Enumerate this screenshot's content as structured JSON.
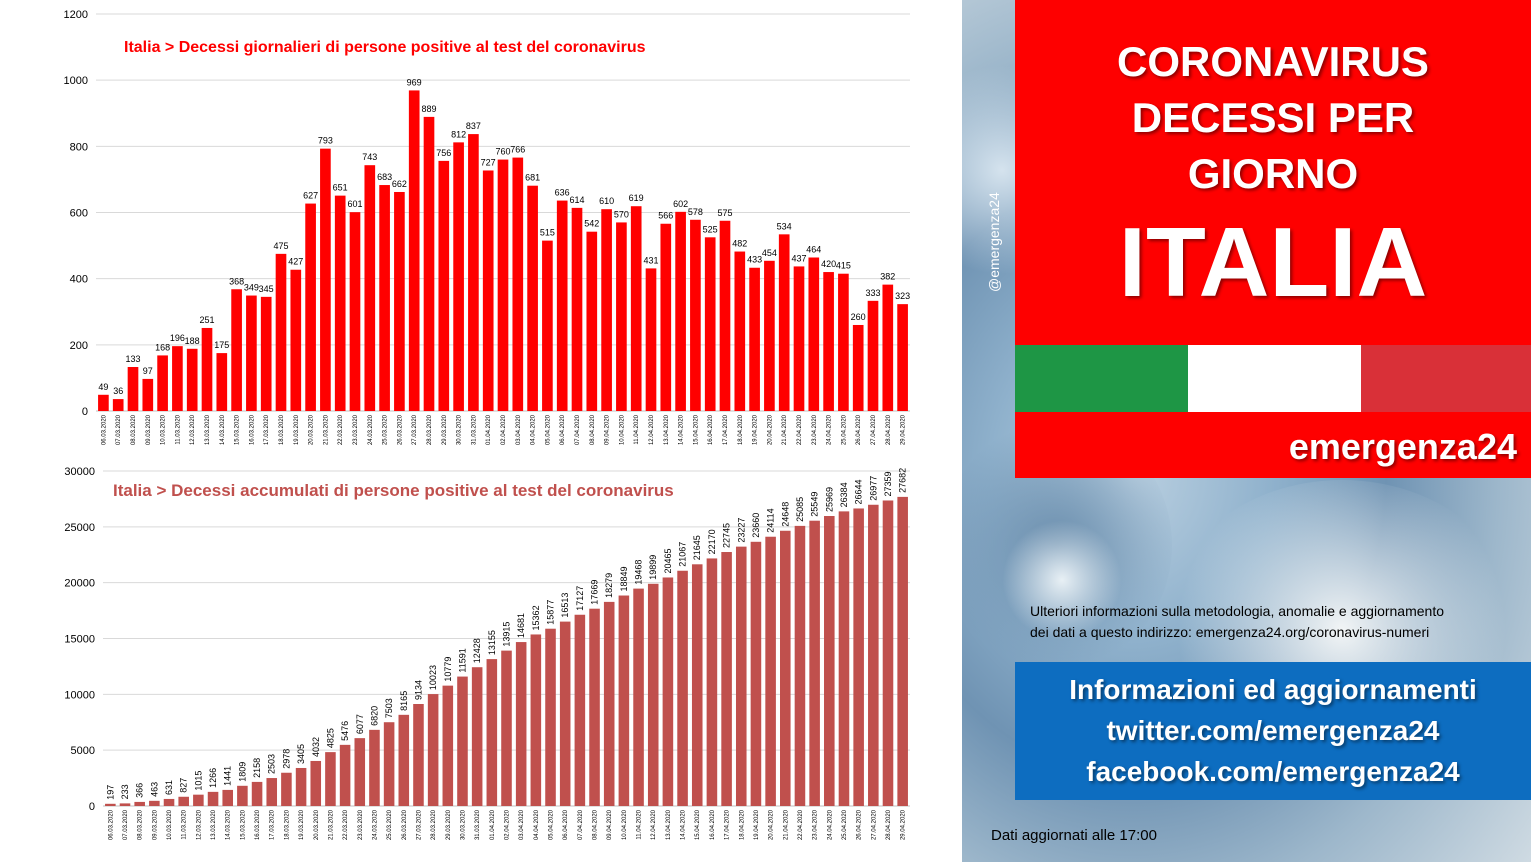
{
  "chart_data": [
    {
      "type": "bar",
      "title": "Italia > Decessi giornalieri di persone positive al test del coronavirus",
      "ylim": [
        0,
        1200
      ],
      "yticks": [
        0,
        200,
        400,
        600,
        800,
        1000,
        1200
      ],
      "grid": true,
      "color": "#ff0000",
      "categories": [
        "06.03.2020",
        "07.03.2020",
        "08.03.2020",
        "09.03.2020",
        "10.03.2020",
        "11.03.2020",
        "12.03.2020",
        "13.03.2020",
        "14.03.2020",
        "15.03.2020",
        "16.03.2020",
        "17.03.2020",
        "18.03.2020",
        "19.03.2020",
        "20.03.2020",
        "21.03.2020",
        "22.03.2020",
        "23.03.2020",
        "24.03.2020",
        "25.03.2020",
        "26.03.2020",
        "27.03.2020",
        "28.03.2020",
        "29.03.2020",
        "30.03.2020",
        "31.03.2020",
        "01.04.2020",
        "02.04.2020",
        "03.04.2020",
        "04.04.2020",
        "05.04.2020",
        "06.04.2020",
        "07.04.2020",
        "08.04.2020",
        "09.04.2020",
        "10.04.2020",
        "11.04.2020",
        "12.04.2020",
        "13.04.2020",
        "14.04.2020",
        "15.04.2020",
        "16.04.2020",
        "17.04.2020",
        "18.04.2020",
        "19.04.2020",
        "20.04.2020",
        "21.04.2020",
        "22.04.2020",
        "23.04.2020",
        "24.04.2020",
        "25.04.2020",
        "26.04.2020",
        "27.04.2020",
        "28.04.2020",
        "29.04.2020"
      ],
      "values": [
        49,
        36,
        133,
        97,
        168,
        196,
        188,
        251,
        175,
        368,
        349,
        345,
        475,
        427,
        627,
        793,
        651,
        601,
        743,
        683,
        662,
        969,
        889,
        756,
        812,
        837,
        727,
        760,
        766,
        681,
        515,
        636,
        614,
        542,
        610,
        570,
        619,
        431,
        566,
        602,
        578,
        525,
        575,
        482,
        433,
        454,
        534,
        437,
        464,
        420,
        415,
        260,
        333,
        382,
        323
      ]
    },
    {
      "type": "bar",
      "title": "Italia > Decessi accumulati di persone positive al test del coronavirus",
      "ylim": [
        0,
        30000
      ],
      "yticks": [
        0,
        5000,
        10000,
        15000,
        20000,
        25000,
        30000
      ],
      "grid": true,
      "color": "#c0504d",
      "categories": [
        "06.03.2020",
        "07.03.2020",
        "08.03.2020",
        "09.03.2020",
        "10.03.2020",
        "11.03.2020",
        "12.03.2020",
        "13.03.2020",
        "14.03.2020",
        "15.03.2020",
        "16.03.2020",
        "17.03.2020",
        "18.03.2020",
        "19.03.2020",
        "20.03.2020",
        "21.03.2020",
        "22.03.2020",
        "23.03.2020",
        "24.03.2020",
        "25.03.2020",
        "26.03.2020",
        "27.03.2020",
        "28.03.2020",
        "29.03.2020",
        "30.03.2020",
        "31.03.2020",
        "01.04.2020",
        "02.04.2020",
        "03.04.2020",
        "04.04.2020",
        "05.04.2020",
        "06.04.2020",
        "07.04.2020",
        "08.04.2020",
        "09.04.2020",
        "10.04.2020",
        "11.04.2020",
        "12.04.2020",
        "13.04.2020",
        "14.04.2020",
        "15.04.2020",
        "16.04.2020",
        "17.04.2020",
        "18.04.2020",
        "19.04.2020",
        "20.04.2020",
        "21.04.2020",
        "22.04.2020",
        "23.04.2020",
        "24.04.2020",
        "25.04.2020",
        "26.04.2020",
        "27.04.2020",
        "28.04.2020",
        "29.04.2020"
      ],
      "values": [
        197,
        233,
        366,
        463,
        631,
        827,
        1015,
        1266,
        1441,
        1809,
        2158,
        2503,
        2978,
        3405,
        4032,
        4825,
        5476,
        6077,
        6820,
        7503,
        8165,
        9134,
        10023,
        10779,
        11591,
        12428,
        13155,
        13915,
        14681,
        15362,
        15877,
        16513,
        17127,
        17669,
        18279,
        18849,
        19468,
        19899,
        20465,
        21067,
        21645,
        22170,
        22745,
        23227,
        23660,
        24114,
        24648,
        25085,
        25549,
        25969,
        26384,
        26644,
        26977,
        27359,
        27682
      ]
    }
  ],
  "panel": {
    "headline_lines": [
      "CORONAVIRUS",
      "DECESSI PER",
      "GIORNO"
    ],
    "country": "ITALIA",
    "brand": "emergenza24",
    "handle": "@emergenza24",
    "info_line1": "Ulteriori informazioni sulla metodologia, anomalie e aggiornamento",
    "info_line2": "dei dati a questo indirizzo: emergenza24.org/coronavirus-numeri",
    "social_title": "Informazioni ed aggiornamenti",
    "twitter": "twitter.com/emergenza24",
    "facebook": "facebook.com/emergenza24",
    "updated": "Dati aggiornati alle 17:00",
    "flag_colors": [
      "#1e9645",
      "#ffffff",
      "#d93038"
    ]
  }
}
